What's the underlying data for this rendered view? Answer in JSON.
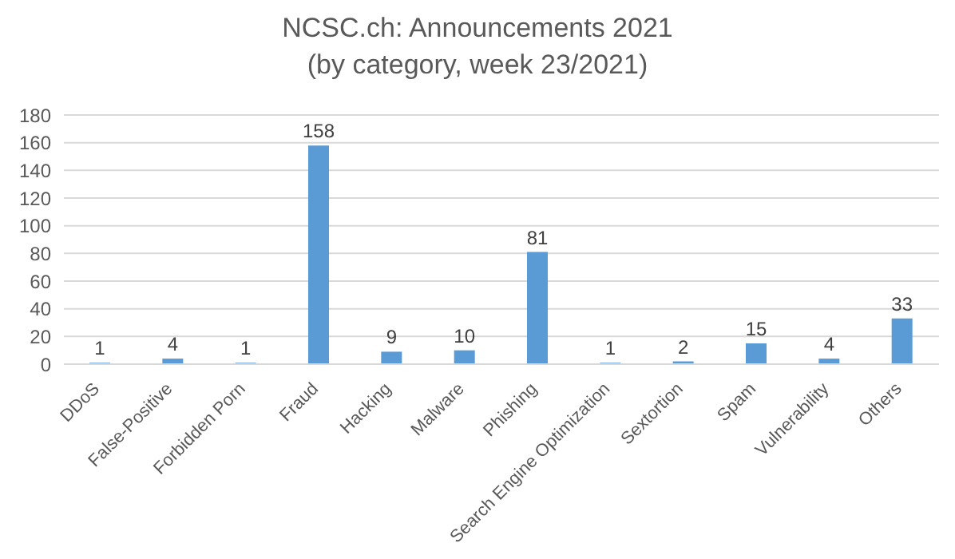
{
  "chart_data": {
    "type": "bar",
    "title": "NCSC.ch: Announcements 2021\n(by category, week 23/2021)",
    "categories": [
      "DDoS",
      "False-Positive",
      "Forbidden Porn",
      "Fraud",
      "Hacking",
      "Malware",
      "Phishing",
      "Search Engine Optimization",
      "Sextortion",
      "Spam",
      "Vulnerability",
      "Others"
    ],
    "values": [
      1,
      4,
      1,
      158,
      9,
      10,
      81,
      1,
      2,
      15,
      4,
      33
    ],
    "color": "#5b9bd5",
    "ylim": [
      0,
      180
    ],
    "yticks": [
      0,
      20,
      40,
      60,
      80,
      100,
      120,
      140,
      160,
      180
    ],
    "grid": "y",
    "data_labels": true
  }
}
